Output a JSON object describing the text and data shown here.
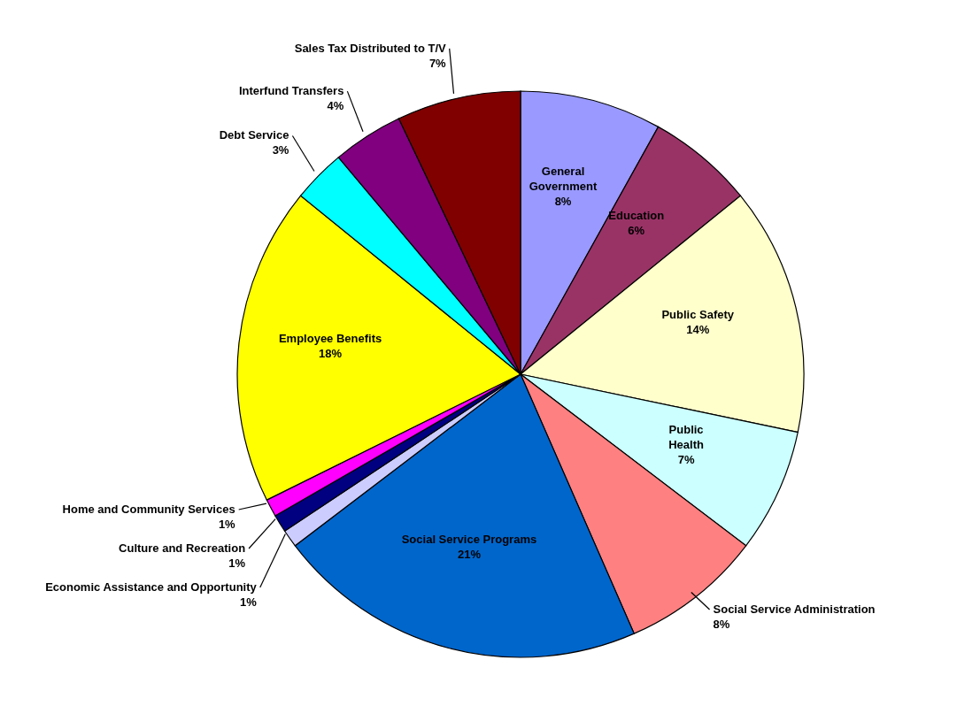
{
  "chart_data": {
    "type": "pie",
    "categories": [
      "General Government",
      "Education",
      "Public Safety",
      "Public Health",
      "Social Service Administration",
      "Social Service Programs",
      "Economic Assistance and Opportunity",
      "Culture and Recreation",
      "Home and Community Services",
      "Employee Benefits",
      "Debt Service",
      "Interfund Transfers",
      "Sales Tax Distributed to T/V"
    ],
    "values": [
      8,
      6,
      14,
      7,
      8,
      21,
      1,
      1,
      1,
      18,
      3,
      4,
      7
    ],
    "value_labels": [
      "8%",
      "6%",
      "14%",
      "7%",
      "8%",
      "21%",
      "1%",
      "1%",
      "1%",
      "18%",
      "3%",
      "4%",
      "7%"
    ],
    "colors": [
      "#9999ff",
      "#993366",
      "#ffffcc",
      "#ccffff",
      "#ff8080",
      "#0066cc",
      "#ccccff",
      "#000080",
      "#ff00ff",
      "#ffff00",
      "#00ffff",
      "#800080",
      "#800000"
    ],
    "legend": false
  }
}
